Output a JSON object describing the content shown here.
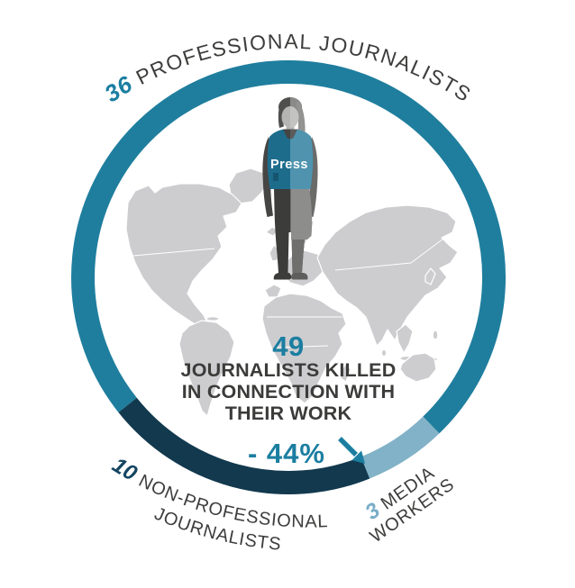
{
  "labels": {
    "top": {
      "value": "36",
      "text": "PROFESSIONAL JOURNALISTS"
    },
    "bottom_left": {
      "value": "10",
      "text": "NON-PROFESSIONAL",
      "text2": "JOURNALISTS"
    },
    "bottom_right": {
      "value": "3",
      "text": "MEDIA",
      "text2": "WORKERS"
    }
  },
  "center": {
    "count": "49",
    "line1": "JOURNALISTS KILLED",
    "line2": "IN CONNECTION WITH",
    "line3": "THEIR WORK",
    "change": "- 44%"
  },
  "figure": {
    "vest_label": "Press"
  },
  "colors": {
    "ring_teal": "#1f7e9e",
    "ring_navy": "#12394e",
    "ring_lightblue": "#82b2c7",
    "teal_text": "#1b7ea1",
    "navy_text": "#154662",
    "lightblue_text": "#79adc7",
    "gray_text": "#3d3d3c",
    "map_gray": "#cdcdd0",
    "arrow": "#1b7ea1"
  },
  "chart_data": {
    "type": "pie",
    "donut": true,
    "title": "49 JOURNALISTS KILLED IN CONNECTION WITH THEIR WORK",
    "total": 49,
    "annotation": "- 44%",
    "start_angle_deg": 231.5,
    "clockwise": true,
    "legend_position": "around-ring",
    "segments": [
      {
        "id": "professional-journalists",
        "label": "Professional journalists",
        "value": 36,
        "color": "#1f7e9e"
      },
      {
        "id": "media-workers",
        "label": "Media workers",
        "value": 3,
        "color": "#82b2c7"
      },
      {
        "id": "non-professional-journalists",
        "label": "Non-professional journalists",
        "value": 10,
        "color": "#12394e"
      }
    ]
  }
}
